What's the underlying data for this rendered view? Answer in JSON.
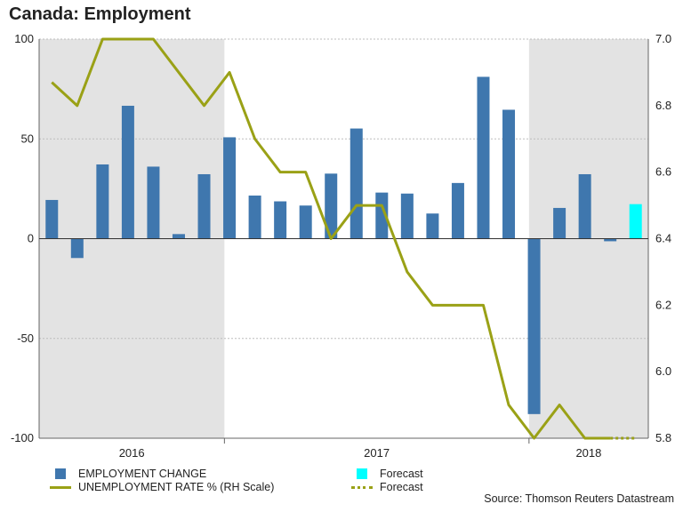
{
  "title": "Canada: Employment",
  "source": "Source: Thomson Reuters Datastream",
  "colors": {
    "bar": "#3f77ae",
    "forecast_bar": "#00ffff",
    "line": "#9aa116",
    "shade": "#e3e3e3",
    "grid": "#bdbdbd"
  },
  "legend": {
    "employment_change": "EMPLOYMENT CHANGE",
    "unemployment_rate": "UNEMPLOYMENT RATE % (RH Scale)",
    "forecast_bar": "Forecast",
    "forecast_line": "Forecast"
  },
  "chart_data": {
    "type": "bar",
    "title": "Canada: Employment",
    "years": [
      "2016",
      "2017",
      "2018"
    ],
    "left_axis": {
      "min": -100,
      "max": 100,
      "ticks": [
        -100,
        -50,
        0,
        50,
        100
      ]
    },
    "right_axis": {
      "min": 5.8,
      "max": 7.0,
      "ticks": [
        "5.8",
        "6.0",
        "6.2",
        "6.4",
        "6.6",
        "6.8",
        "7.0"
      ]
    },
    "shaded_periods": [
      "2016",
      "2018"
    ],
    "series": [
      {
        "name": "EMPLOYMENT CHANGE",
        "axis": "left",
        "values": [
          19.4,
          -9.7,
          37.2,
          66.6,
          36.1,
          2.3,
          32.3,
          50.8,
          21.6,
          18.7,
          16.6,
          32.6,
          55.2,
          23.1,
          22.6,
          12.6,
          27.9,
          81.1,
          64.6,
          -87.9,
          15.4,
          32.3,
          -1.3,
          null
        ],
        "forecast_values": [
          null,
          null,
          null,
          null,
          null,
          null,
          null,
          null,
          null,
          null,
          null,
          null,
          null,
          null,
          null,
          null,
          null,
          null,
          null,
          null,
          null,
          null,
          null,
          17.3
        ]
      },
      {
        "name": "UNEMPLOYMENT RATE % (RH Scale)",
        "axis": "right",
        "values": [
          6.87,
          6.8,
          7.0,
          7.0,
          7.0,
          6.9,
          6.8,
          6.9,
          6.7,
          6.6,
          6.6,
          6.4,
          6.5,
          6.5,
          6.3,
          6.2,
          6.2,
          6.2,
          5.9,
          5.8,
          5.9,
          5.8,
          5.8,
          5.8
        ],
        "forecast_values": [
          null,
          null,
          null,
          null,
          null,
          null,
          null,
          null,
          null,
          null,
          null,
          null,
          null,
          null,
          null,
          null,
          null,
          null,
          null,
          null,
          null,
          null,
          5.8,
          5.8
        ]
      }
    ]
  }
}
